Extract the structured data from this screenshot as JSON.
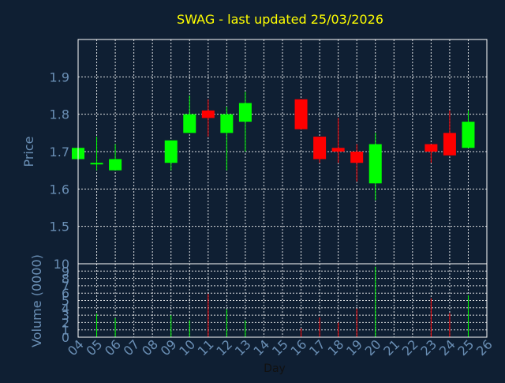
{
  "chart_data": {
    "type": "candlestick",
    "title": "SWAG - last updated 25/03/2026",
    "xlabel": "Day",
    "price_panel": {
      "ylabel": "Price",
      "ylim": [
        1.4,
        2.0
      ],
      "yticks": [
        "1.5",
        "1.6",
        "1.7",
        "1.8",
        "1.9"
      ]
    },
    "volume_panel": {
      "ylabel": "Volume (0000)",
      "ylim": [
        0,
        10
      ],
      "yticks": [
        "0",
        "1",
        "2",
        "3",
        "4",
        "5",
        "6",
        "7",
        "8",
        "9",
        "10"
      ]
    },
    "x_ticks": [
      "04",
      "05",
      "06",
      "07",
      "08",
      "09",
      "10",
      "11",
      "12",
      "13",
      "14",
      "15",
      "16",
      "17",
      "18",
      "19",
      "20",
      "21",
      "22",
      "23",
      "24",
      "25",
      "26"
    ],
    "grid": true,
    "colors": {
      "background": "#0f1f33",
      "up": "#00ff00",
      "down": "#ff0000",
      "grid": "#ffffff",
      "axis_text": "#6a8fb5",
      "title": "#ffff00"
    },
    "candles": [
      {
        "day": "04",
        "open": 1.68,
        "high": 1.71,
        "low": 1.68,
        "close": 1.71,
        "volume": 0.6
      },
      {
        "day": "05",
        "open": 1.67,
        "high": 1.74,
        "low": 1.65,
        "close": 1.67,
        "volume": 3.2
      },
      {
        "day": "06",
        "open": 1.65,
        "high": 1.72,
        "low": 1.65,
        "close": 1.68,
        "volume": 2.6
      },
      {
        "day": "09",
        "open": 1.67,
        "high": 1.73,
        "low": 1.65,
        "close": 1.73,
        "volume": 3.0
      },
      {
        "day": "10",
        "open": 1.75,
        "high": 1.85,
        "low": 1.75,
        "close": 1.8,
        "volume": 2.3
      },
      {
        "day": "11",
        "open": 1.81,
        "high": 1.84,
        "low": 1.74,
        "close": 1.79,
        "volume": 5.9
      },
      {
        "day": "12",
        "open": 1.75,
        "high": 1.82,
        "low": 1.65,
        "close": 1.8,
        "volume": 3.8
      },
      {
        "day": "13",
        "open": 1.78,
        "high": 1.86,
        "low": 1.7,
        "close": 1.83,
        "volume": 2.3
      },
      {
        "day": "16",
        "open": 1.84,
        "high": 1.84,
        "low": 1.76,
        "close": 1.76,
        "volume": 1.2
      },
      {
        "day": "17",
        "open": 1.74,
        "high": 1.74,
        "low": 1.67,
        "close": 1.68,
        "volume": 2.7
      },
      {
        "day": "18",
        "open": 1.71,
        "high": 1.79,
        "low": 1.67,
        "close": 1.7,
        "volume": 2.0
      },
      {
        "day": "19",
        "open": 1.7,
        "high": 1.72,
        "low": 1.62,
        "close": 1.67,
        "volume": 3.9
      },
      {
        "day": "20",
        "open": 1.615,
        "high": 1.75,
        "low": 1.57,
        "close": 1.72,
        "volume": 9.6
      },
      {
        "day": "23",
        "open": 1.72,
        "high": 1.72,
        "low": 1.67,
        "close": 1.7,
        "volume": 5.3
      },
      {
        "day": "24",
        "open": 1.75,
        "high": 1.81,
        "low": 1.69,
        "close": 1.69,
        "volume": 3.3
      },
      {
        "day": "25",
        "open": 1.71,
        "high": 1.81,
        "low": 1.71,
        "close": 1.78,
        "volume": 5.7
      }
    ]
  }
}
